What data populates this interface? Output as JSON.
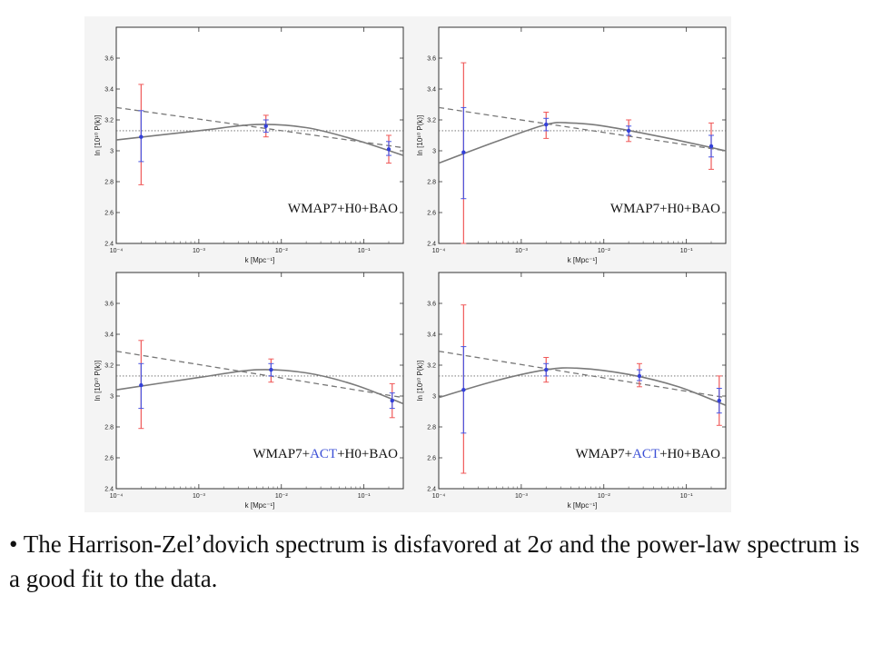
{
  "caption": {
    "bullet": "•",
    "text_before": "The Harrison-Zel’dovich spectrum is disfavored at 2",
    "sigma": "σ",
    "text_after": " and the power-law spectrum is a good fit to the data."
  },
  "chart_data": [
    {
      "type": "scatter",
      "label_parts": [
        "WMAP7",
        "+H0+BAO"
      ],
      "label_highlight": "",
      "xlabel": "k [Mpc⁻¹]",
      "ylabel": "ln [10¹⁰ P(k)]",
      "xscale": "log",
      "xlim": [
        0.0001,
        0.3
      ],
      "ylim": [
        2.4,
        3.8
      ],
      "yticks": [
        "2.4",
        "2.6",
        "2.8",
        "3",
        "3.2",
        "3.4",
        "3.6"
      ],
      "xticks": [
        "10⁻⁴",
        "10⁻³",
        "10⁻²",
        "10⁻¹"
      ],
      "reference_level": 3.13,
      "points": [
        {
          "k": 0.0002,
          "y": 3.09,
          "err_red": [
            2.78,
            3.43
          ],
          "err_blue": [
            2.93,
            3.26
          ]
        },
        {
          "k": 0.0065,
          "y": 3.16,
          "err_red": [
            3.09,
            3.23
          ],
          "err_blue": [
            3.12,
            3.2
          ]
        },
        {
          "k": 0.2,
          "y": 3.01,
          "err_red": [
            2.92,
            3.1
          ],
          "err_blue": [
            2.97,
            3.06
          ]
        }
      ],
      "powerlaw_line": [
        [
          0.0001,
          3.28
        ],
        [
          0.3,
          3.02
        ]
      ],
      "fit_curve": [
        [
          0.0001,
          3.07
        ],
        [
          0.001,
          3.13
        ],
        [
          0.005,
          3.17
        ],
        [
          0.02,
          3.15
        ],
        [
          0.08,
          3.07
        ],
        [
          0.3,
          2.97
        ]
      ]
    },
    {
      "type": "scatter",
      "label_parts": [
        "WMAP7",
        "+H0+BAO"
      ],
      "label_highlight": "",
      "xlabel": "k [Mpc⁻¹]",
      "ylabel": "ln [10¹⁰ P(k)]",
      "xscale": "log",
      "xlim": [
        0.0001,
        0.3
      ],
      "ylim": [
        2.4,
        3.8
      ],
      "yticks": [
        "2.4",
        "2.6",
        "2.8",
        "3",
        "3.2",
        "3.4",
        "3.6"
      ],
      "xticks": [
        "10⁻⁴",
        "10⁻³",
        "10⁻²",
        "10⁻¹"
      ],
      "reference_level": 3.13,
      "points": [
        {
          "k": 0.0002,
          "y": 2.99,
          "err_red": [
            2.4,
            3.57
          ],
          "err_blue": [
            2.69,
            3.28
          ]
        },
        {
          "k": 0.002,
          "y": 3.17,
          "err_red": [
            3.08,
            3.25
          ],
          "err_blue": [
            3.13,
            3.21
          ]
        },
        {
          "k": 0.02,
          "y": 3.13,
          "err_red": [
            3.06,
            3.2
          ],
          "err_blue": [
            3.1,
            3.16
          ]
        },
        {
          "k": 0.2,
          "y": 3.03,
          "err_red": [
            2.88,
            3.18
          ],
          "err_blue": [
            2.96,
            3.1
          ]
        }
      ],
      "powerlaw_line": [
        [
          0.0001,
          3.28
        ],
        [
          0.3,
          3.0
        ]
      ],
      "fit_curve": [
        [
          0.0001,
          2.92
        ],
        [
          0.0005,
          3.06
        ],
        [
          0.002,
          3.17
        ],
        [
          0.004,
          3.18
        ],
        [
          0.01,
          3.16
        ],
        [
          0.05,
          3.09
        ],
        [
          0.3,
          3.0
        ]
      ]
    },
    {
      "type": "scatter",
      "label_parts": [
        "WMAP7+",
        "ACT",
        "+H0+BAO"
      ],
      "label_highlight": "ACT",
      "xlabel": "k [Mpc⁻¹]",
      "ylabel": "ln [10¹⁰ P(k)]",
      "xscale": "log",
      "xlim": [
        0.0001,
        0.3
      ],
      "ylim": [
        2.4,
        3.8
      ],
      "yticks": [
        "2.4",
        "2.6",
        "2.8",
        "3",
        "3.2",
        "3.4",
        "3.6"
      ],
      "xticks": [
        "10⁻⁴",
        "10⁻³",
        "10⁻²",
        "10⁻¹"
      ],
      "reference_level": 3.13,
      "points": [
        {
          "k": 0.0002,
          "y": 3.07,
          "err_red": [
            2.79,
            3.36
          ],
          "err_blue": [
            2.92,
            3.21
          ]
        },
        {
          "k": 0.0075,
          "y": 3.17,
          "err_red": [
            3.09,
            3.24
          ],
          "err_blue": [
            3.13,
            3.21
          ]
        },
        {
          "k": 0.22,
          "y": 2.97,
          "err_red": [
            2.86,
            3.08
          ],
          "err_blue": [
            2.92,
            3.02
          ]
        }
      ],
      "powerlaw_line": [
        [
          0.0001,
          3.29
        ],
        [
          0.3,
          2.99
        ]
      ],
      "fit_curve": [
        [
          0.0001,
          3.04
        ],
        [
          0.001,
          3.12
        ],
        [
          0.005,
          3.17
        ],
        [
          0.02,
          3.15
        ],
        [
          0.08,
          3.07
        ],
        [
          0.3,
          2.95
        ]
      ]
    },
    {
      "type": "scatter",
      "label_parts": [
        "WMAP7+",
        "ACT",
        "+H0+BAO"
      ],
      "label_highlight": "ACT",
      "xlabel": "k [Mpc⁻¹]",
      "ylabel": "ln [10¹⁰ P(k)]",
      "xscale": "log",
      "xlim": [
        0.0001,
        0.3
      ],
      "ylim": [
        2.4,
        3.8
      ],
      "yticks": [
        "2.4",
        "2.6",
        "2.8",
        "3",
        "3.2",
        "3.4",
        "3.6"
      ],
      "xticks": [
        "10⁻⁴",
        "10⁻³",
        "10⁻²",
        "10⁻¹"
      ],
      "reference_level": 3.13,
      "points": [
        {
          "k": 0.0002,
          "y": 3.04,
          "err_red": [
            2.5,
            3.59
          ],
          "err_blue": [
            2.76,
            3.32
          ]
        },
        {
          "k": 0.002,
          "y": 3.17,
          "err_red": [
            3.09,
            3.25
          ],
          "err_blue": [
            3.13,
            3.21
          ]
        },
        {
          "k": 0.027,
          "y": 3.13,
          "err_red": [
            3.06,
            3.21
          ],
          "err_blue": [
            3.1,
            3.17
          ]
        },
        {
          "k": 0.25,
          "y": 2.97,
          "err_red": [
            2.81,
            3.13
          ],
          "err_blue": [
            2.89,
            3.05
          ]
        }
      ],
      "powerlaw_line": [
        [
          0.0001,
          3.29
        ],
        [
          0.3,
          2.99
        ]
      ],
      "fit_curve": [
        [
          0.0001,
          2.99
        ],
        [
          0.0005,
          3.1
        ],
        [
          0.002,
          3.17
        ],
        [
          0.005,
          3.18
        ],
        [
          0.02,
          3.14
        ],
        [
          0.08,
          3.06
        ],
        [
          0.3,
          2.94
        ]
      ]
    }
  ]
}
